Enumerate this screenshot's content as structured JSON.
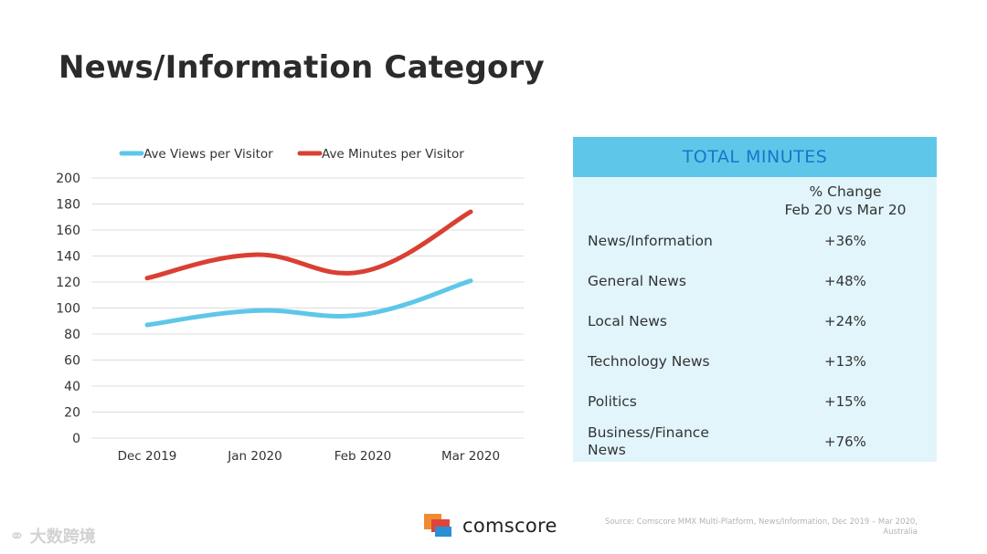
{
  "page": {
    "title": "News/Information Category"
  },
  "chart_data": {
    "type": "line",
    "categories": [
      "Dec 2019",
      "Jan 2020",
      "Feb 2020",
      "Mar 2020"
    ],
    "series": [
      {
        "name": "Ave Views per Visitor",
        "color": "#5ec7e9",
        "values": [
          87,
          98,
          95,
          121
        ]
      },
      {
        "name": "Ave Minutes per Visitor",
        "color": "#d94033",
        "values": [
          123,
          141,
          128,
          174
        ]
      }
    ],
    "yticks": [
      "0",
      "20",
      "40",
      "60",
      "80",
      "100",
      "120",
      "140",
      "160",
      "180",
      "200"
    ],
    "ylim": [
      0,
      200
    ],
    "ystep": 20,
    "grid": true,
    "legend_position": "top",
    "title": "",
    "xlabel": "",
    "ylabel": ""
  },
  "table": {
    "header": "TOTAL MINUTES",
    "col_header_line1": "% Change",
    "col_header_line2": "Feb 20 vs Mar 20",
    "rows": [
      {
        "category": "News/Information",
        "change": "+36%"
      },
      {
        "category": "General News",
        "change": "+48%"
      },
      {
        "category": "Local News",
        "change": "+24%"
      },
      {
        "category": "Technology News",
        "change": "+13%"
      },
      {
        "category": "Politics",
        "change": "+15%"
      },
      {
        "category": "Business/Finance News",
        "change": "+76%"
      }
    ]
  },
  "footer": {
    "logo_text": "comscore",
    "source": "Source: Comscore MMX Multi-Platform, News/Information, Dec 2019 – Mar 2020, Australia",
    "watermark": "大数跨境",
    "colors": {
      "orange": "#f28b30",
      "red": "#e0443c",
      "blue": "#2b8fd6"
    }
  }
}
